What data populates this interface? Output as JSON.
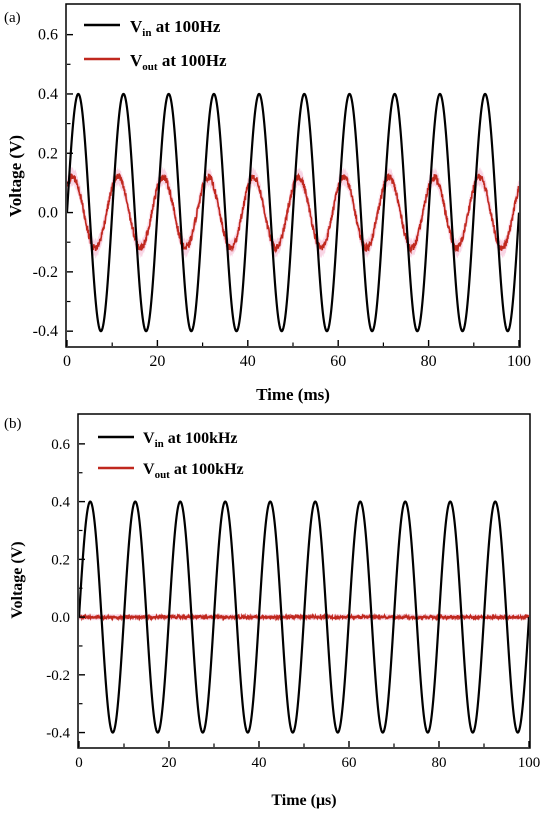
{
  "chart_data": [
    {
      "type": "line",
      "panel_label": "(a)",
      "xlabel": "Time (ms)",
      "ylabel": "Voltage (V)",
      "xlim": [
        0,
        100
      ],
      "ylim": [
        -0.45,
        0.7
      ],
      "x_ticks": [
        "0",
        "20",
        "40",
        "60",
        "80",
        "100"
      ],
      "y_ticks": [
        "-0.4",
        "-0.2",
        "0.0",
        "0.2",
        "0.4",
        "0.6"
      ],
      "grid": false,
      "legend_position": "top-left",
      "series": [
        {
          "legend_base": "V",
          "legend_sub": "in",
          "legend_suffix": " at 100Hz",
          "color": "#000000",
          "waveform": "sine",
          "amplitude_V": 0.4,
          "period_x": 10,
          "phase_deg": 0,
          "x_sample": [
            0,
            2.5,
            5,
            7.5,
            10,
            12.5,
            15,
            17.5,
            20
          ],
          "y_sample": [
            0.0,
            0.4,
            0.0,
            -0.4,
            0.0,
            0.4,
            0.0,
            -0.4,
            0.0
          ]
        },
        {
          "legend_base": "V",
          "legend_sub": "out",
          "legend_suffix": " at 100Hz",
          "color": "#c0281e",
          "band_color": "#f4b3cf",
          "waveform": "sine",
          "amplitude_V": 0.12,
          "period_x": 10,
          "phase_deg": 45,
          "x_sample": [
            0,
            1.2,
            3.7,
            6.2,
            8.7,
            10
          ],
          "y_sample": [
            0.08,
            0.12,
            0.0,
            -0.12,
            0.0,
            0.08
          ]
        }
      ]
    },
    {
      "type": "line",
      "panel_label": "(b)",
      "xlabel": "Time (μs)",
      "ylabel": "Voltage (V)",
      "xlim": [
        0,
        100
      ],
      "ylim": [
        -0.45,
        0.7
      ],
      "x_ticks": [
        "0",
        "20",
        "40",
        "60",
        "80",
        "100"
      ],
      "y_ticks": [
        "-0.4",
        "-0.2",
        "0.0",
        "0.2",
        "0.4",
        "0.6"
      ],
      "grid": false,
      "legend_position": "top-left",
      "series": [
        {
          "legend_base": "V",
          "legend_sub": "in",
          "legend_suffix": " at 100kHz",
          "color": "#000000",
          "waveform": "sine",
          "amplitude_V": 0.4,
          "period_x": 10,
          "phase_deg": 0,
          "x_sample": [
            0,
            2.5,
            5,
            7.5,
            10,
            12.5,
            15,
            17.5,
            20
          ],
          "y_sample": [
            0.0,
            0.4,
            0.0,
            -0.4,
            0.0,
            0.4,
            0.0,
            -0.4,
            0.0
          ]
        },
        {
          "legend_base": "V",
          "legend_sub": "out",
          "legend_suffix": " at 100kHz",
          "color": "#c0281e",
          "band_color": "#f4b3cf",
          "waveform": "noise",
          "amplitude_V": 0.005,
          "x_sample": [
            0,
            50,
            100
          ],
          "y_sample": [
            0.0,
            0.0,
            0.0
          ]
        }
      ]
    }
  ]
}
